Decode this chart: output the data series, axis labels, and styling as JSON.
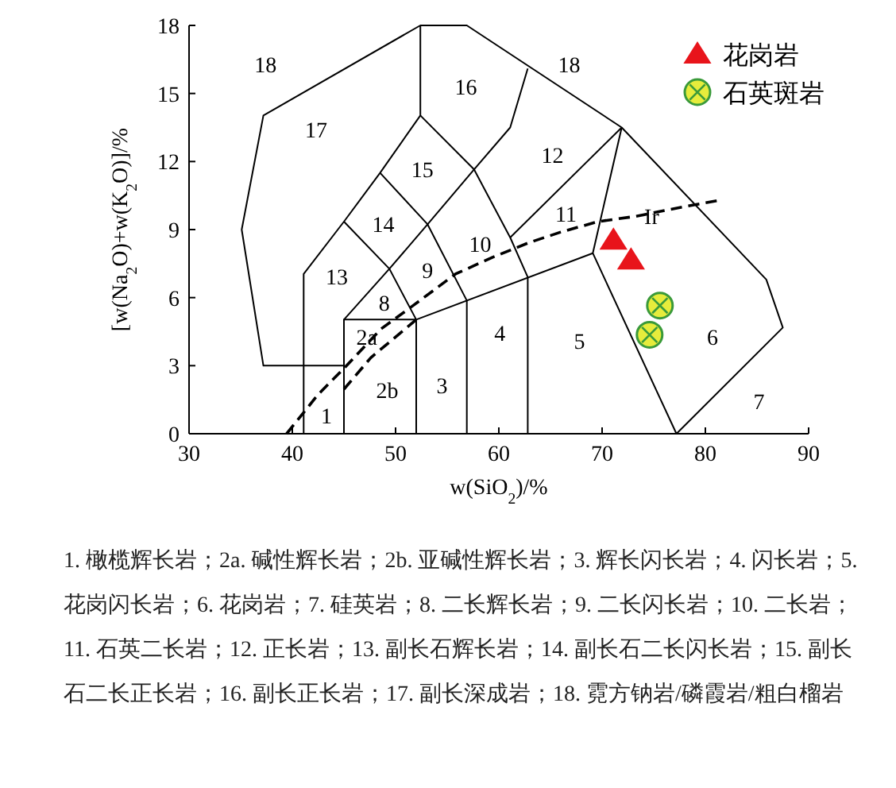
{
  "chart_data": {
    "type": "scatter",
    "xlabel": "w(SiO$_{2}$)/%",
    "ylabel": "[w(Na$_{2}$O)+w(K$_{2}$O)]/%",
    "xlim": [
      30,
      90
    ],
    "ylim": [
      0,
      18
    ],
    "xticks": [
      30,
      40,
      50,
      60,
      70,
      80,
      90
    ],
    "yticks": [
      0,
      3,
      6,
      9,
      12,
      15,
      18
    ],
    "grid": false,
    "legend": "top right",
    "series": [
      {
        "type": "line",
        "color": "#000000",
        "line_style": "solid",
        "x": [
          45,
          37.2,
          35.1,
          37.2,
          52.4,
          56.9,
          71.9,
          85.9,
          87.5,
          77.2
        ],
        "values": [
          3,
          3,
          9.0,
          14.03,
          18,
          18,
          13.5,
          6.8,
          4.68,
          0
        ]
      },
      {
        "type": "line",
        "color": "#000000",
        "line_style": "solid",
        "x": [
          71.9,
          69.1,
          77.2
        ],
        "values": [
          13.5,
          7.96,
          0
        ]
      },
      {
        "type": "line",
        "color": "#000000",
        "line_style": "solid",
        "x": [
          69.1,
          52,
          52
        ],
        "values": [
          7.96,
          5.03,
          0
        ]
      },
      {
        "type": "line",
        "color": "#000000",
        "line_style": "solid",
        "x": [
          45,
          45,
          52
        ],
        "values": [
          0,
          5.03,
          5.03
        ]
      },
      {
        "type": "line",
        "color": "#000000",
        "line_style": "solid",
        "x": [
          41.1,
          41.1,
          45,
          48.5,
          52.4,
          52.4
        ],
        "values": [
          0,
          7.04,
          9.35,
          11.5,
          14.03,
          18
        ]
      },
      {
        "type": "line",
        "color": "#000000",
        "line_style": "solid",
        "x": [
          45,
          49.4,
          52
        ],
        "values": [
          5.03,
          7.27,
          5.03
        ]
      },
      {
        "type": "line",
        "color": "#000000",
        "line_style": "solid",
        "x": [
          45,
          49.4,
          53.1,
          57.6,
          61.1,
          62.8
        ],
        "values": [
          9.35,
          7.27,
          9.23,
          11.65,
          13.5,
          16.1
        ]
      },
      {
        "type": "line",
        "color": "#000000",
        "line_style": "solid",
        "x": [
          48.5,
          53.1,
          56.9,
          56.9
        ],
        "values": [
          11.5,
          9.23,
          5.87,
          0
        ]
      },
      {
        "type": "line",
        "color": "#000000",
        "line_style": "solid",
        "x": [
          52.4,
          57.6,
          61.1,
          62.8,
          62.8
        ],
        "values": [
          14.03,
          11.65,
          8.65,
          6.9,
          0
        ]
      },
      {
        "type": "line",
        "color": "#000000",
        "line_style": "solid",
        "x": [
          61.1,
          71.9
        ],
        "values": [
          8.65,
          13.5
        ]
      },
      {
        "type": "line",
        "color": "#000000",
        "line_style": "dashed",
        "x": [
          39.45,
          42.5,
          45.0,
          48.6,
          51.7,
          55.8,
          59.4,
          62.9,
          66.0,
          69.6,
          73.2,
          78.3,
          81.1
        ],
        "values": [
          0,
          1.73,
          2.88,
          4.62,
          5.65,
          7.04,
          7.78,
          8.42,
          8.89,
          9.35,
          9.58,
          10.04,
          10.27
        ]
      },
      {
        "type": "line",
        "color": "#000000",
        "line_style": "dashed",
        "x": [
          45.0,
          47.6,
          52.0
        ],
        "values": [
          1.96,
          3.35,
          5.03
        ]
      },
      {
        "name": "花岗岩",
        "type": "scatter",
        "marker": "triangle",
        "color": "#e8141b",
        "x": [
          71.1,
          72.8
        ],
        "values": [
          8.54,
          7.66
        ]
      },
      {
        "name": "石英斑岩",
        "type": "scatter",
        "marker": "circle",
        "color": "#e6ec3c",
        "x": [
          75.6,
          74.6
        ],
        "values": [
          5.65,
          4.36
        ]
      }
    ],
    "annotations": [
      "18",
      "17",
      "16",
      "18",
      "15",
      "12",
      "14",
      "10",
      "11",
      "Ir",
      "13",
      "9",
      "8",
      "2a",
      "2b",
      "3",
      "4",
      "5",
      "6",
      "7",
      "1",
      "1. 橄榄辉长岩；2a. 碱性辉长岩；2b. 亚碱性辉长岩；3. 辉长闪长岩；4. 闪长岩；5. 花岗闪长岩；6. 花岗岩；7. 硅英岩；8. 二长辉长岩；9. 二长闪长岩；10. 二长岩；11. 石英二长岩；12. 正长岩；13. 副长石辉长岩；14. 副长石二长闪长岩；15. 副长石二长正长岩；16. 副长正长岩；17. 副长深成岩；18. 霓方钠岩/磷霞岩/粗白榴岩"
    ]
  }
}
